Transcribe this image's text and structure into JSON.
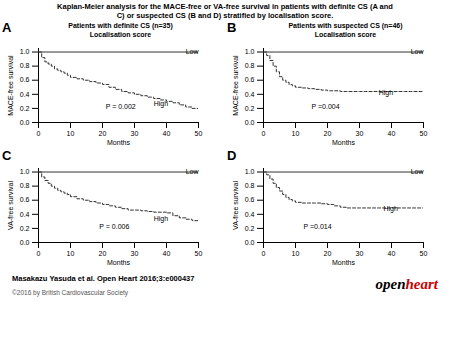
{
  "title": "Kaplan-Meier analysis for the MACE-free or VA-free survival in patients with definite CS (A and\nC) or suspected CS (B and D) stratified by localisation score.",
  "annotations": [
    {
      "text": "Masakazu Yasuda et al. Open Heart 2016;3:e000437"
    },
    {
      "text": "©2016 by British Cardiovascular Society",
      "color": "#555555"
    },
    {
      "text": "open",
      "color": "black"
    },
    {
      "text": "heart",
      "color": "#cc0000"
    }
  ],
  "chart_data": [
    {
      "type": "step",
      "title": "A",
      "subtitle": "Patients with definite CS (n=35)\nLocalisation score",
      "xlabel": "Months",
      "ylabel": "MACE-free survival",
      "annotations": [
        {
          "text": "P = 0.002"
        }
      ],
      "xlim": [
        0,
        50
      ],
      "xticks": [
        0,
        10,
        20,
        30,
        40,
        50
      ],
      "ylim": [
        0.0,
        1.05
      ],
      "yticks": [
        {
          "value": 0.0,
          "label": "0.0"
        },
        0.2,
        0.4,
        0.6,
        0.8,
        {
          "value": 1.0,
          "label": "1.0"
        }
      ],
      "grid": false,
      "series": [
        {
          "name": "Low",
          "color": "#333333",
          "line_style": "solid",
          "x": [
            0,
            50
          ],
          "values": [
            1.0,
            1.0
          ]
        },
        {
          "name": "High",
          "color": "#333333",
          "line_style": "dashed",
          "x": [
            0,
            1,
            2,
            3,
            4,
            5,
            6,
            7,
            8,
            9,
            10,
            12,
            14,
            16,
            18,
            20,
            22,
            24,
            26,
            28,
            30,
            32,
            34,
            36,
            38,
            40,
            42,
            44,
            46,
            48,
            50
          ],
          "values": [
            1.0,
            0.92,
            0.86,
            0.83,
            0.8,
            0.76,
            0.74,
            0.72,
            0.7,
            0.67,
            0.64,
            0.62,
            0.6,
            0.58,
            0.56,
            0.54,
            0.5,
            0.47,
            0.44,
            0.42,
            0.4,
            0.38,
            0.36,
            0.34,
            0.32,
            0.3,
            0.28,
            0.25,
            0.22,
            0.2,
            0.19
          ]
        }
      ]
    },
    {
      "type": "step",
      "title": "B",
      "subtitle": "Patients with suspected CS (n=46)\nLocalisation score",
      "xlabel": "Months",
      "ylabel": "MACE-free survival",
      "annotations": [
        {
          "text": "P =0.004"
        }
      ],
      "xlim": [
        0,
        50
      ],
      "xticks": [
        0,
        10,
        20,
        30,
        40,
        50
      ],
      "ylim": [
        0.0,
        1.05
      ],
      "yticks": [
        {
          "value": 0.0,
          "label": "0.0"
        },
        0.2,
        0.4,
        0.6,
        0.8,
        {
          "value": 1.0,
          "label": "1.0"
        }
      ],
      "grid": false,
      "series": [
        {
          "name": "Low",
          "color": "#333333",
          "line_style": "solid",
          "x": [
            0,
            3,
            4,
            50
          ],
          "values": [
            1.0,
            1.0,
            1.0,
            1.0
          ]
        },
        {
          "name": "High",
          "color": "#333333",
          "line_style": "dashed",
          "x": [
            0,
            1,
            2,
            3,
            4,
            5,
            6,
            7,
            8,
            9,
            10,
            12,
            14,
            16,
            18,
            20,
            22,
            24,
            26,
            28,
            30,
            32,
            34,
            36,
            38,
            40,
            42,
            44,
            46,
            48,
            50
          ],
          "values": [
            1.0,
            0.95,
            0.88,
            0.8,
            0.72,
            0.65,
            0.6,
            0.57,
            0.54,
            0.52,
            0.5,
            0.49,
            0.48,
            0.47,
            0.46,
            0.45,
            0.45,
            0.44,
            0.44,
            0.44,
            0.44,
            0.44,
            0.44,
            0.44,
            0.44,
            0.44,
            0.44,
            0.44,
            0.44,
            0.44,
            0.44
          ]
        }
      ]
    },
    {
      "type": "step",
      "title": "C",
      "xlabel": "Months",
      "ylabel": "VA-free survival",
      "annotations": [
        {
          "text": "P = 0.006"
        }
      ],
      "xlim": [
        0,
        50
      ],
      "xticks": [
        0,
        10,
        20,
        30,
        40,
        50
      ],
      "ylim": [
        0.0,
        1.05
      ],
      "yticks": [
        {
          "value": 0.0,
          "label": "0.0"
        },
        0.2,
        0.4,
        0.6,
        0.8,
        {
          "value": 1.0,
          "label": "1.0"
        }
      ],
      "grid": false,
      "series": [
        {
          "name": "Low",
          "color": "#333333",
          "line_style": "solid",
          "x": [
            0,
            50
          ],
          "values": [
            1.0,
            1.0
          ]
        },
        {
          "name": "High",
          "color": "#333333",
          "line_style": "dashed",
          "x": [
            0,
            1,
            2,
            3,
            4,
            5,
            6,
            7,
            8,
            9,
            10,
            12,
            14,
            16,
            18,
            20,
            22,
            24,
            26,
            28,
            30,
            32,
            34,
            36,
            38,
            40,
            42,
            44,
            46,
            48,
            50
          ],
          "values": [
            1.0,
            0.93,
            0.88,
            0.84,
            0.8,
            0.77,
            0.74,
            0.72,
            0.7,
            0.68,
            0.65,
            0.62,
            0.6,
            0.58,
            0.56,
            0.54,
            0.52,
            0.5,
            0.48,
            0.46,
            0.46,
            0.45,
            0.44,
            0.43,
            0.43,
            0.42,
            0.38,
            0.35,
            0.33,
            0.31,
            0.3
          ]
        }
      ]
    },
    {
      "type": "step",
      "title": "D",
      "xlabel": "Months",
      "ylabel": "VA-free survival",
      "annotations": [
        {
          "text": "P =0.014"
        }
      ],
      "xlim": [
        0,
        50
      ],
      "xticks": [
        0,
        10,
        20,
        30,
        40,
        50
      ],
      "ylim": [
        0.0,
        1.05
      ],
      "yticks": [
        {
          "value": 0.0,
          "label": "0.0"
        },
        0.2,
        0.4,
        0.6,
        0.8,
        {
          "value": 1.0,
          "label": "1.0"
        }
      ],
      "grid": false,
      "series": [
        {
          "name": "Low",
          "color": "#333333",
          "line_style": "solid",
          "x": [
            0,
            2,
            3,
            50
          ],
          "values": [
            1.0,
            1.0,
            1.0,
            1.0
          ]
        },
        {
          "name": "High",
          "color": "#333333",
          "line_style": "dashed",
          "x": [
            0,
            1,
            2,
            3,
            4,
            5,
            6,
            7,
            8,
            9,
            10,
            12,
            14,
            16,
            18,
            20,
            22,
            24,
            26,
            28,
            30,
            32,
            34,
            36,
            38,
            40,
            42,
            44,
            46,
            48,
            50
          ],
          "values": [
            1.0,
            0.96,
            0.9,
            0.84,
            0.78,
            0.73,
            0.68,
            0.64,
            0.61,
            0.59,
            0.57,
            0.56,
            0.56,
            0.56,
            0.55,
            0.54,
            0.52,
            0.5,
            0.49,
            0.49,
            0.49,
            0.49,
            0.49,
            0.49,
            0.49,
            0.49,
            0.49,
            0.49,
            0.49,
            0.49,
            0.49
          ]
        }
      ]
    }
  ]
}
